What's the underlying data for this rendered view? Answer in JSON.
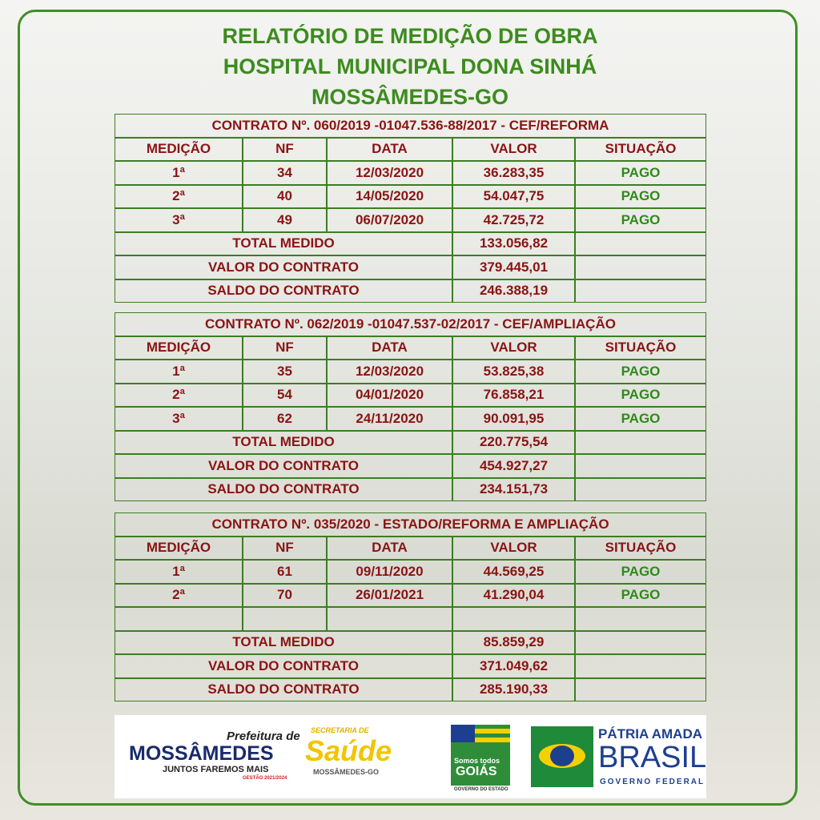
{
  "title": [
    "RELATÓRIO DE MEDIÇÃO DE OBRA",
    "HOSPITAL MUNICIPAL DONA SINHÁ",
    "MOSSÂMEDES-GO"
  ],
  "contracts": [
    {
      "header": "CONTRATO Nº. 060/2019 -01047.536-88/2017 - CEF/REFORMA",
      "columns": [
        "MEDIÇÃO",
        "NF",
        "DATA",
        "VALOR",
        "SITUAÇÃO"
      ],
      "rows": [
        [
          "1ª",
          "34",
          "12/03/2020",
          "36.283,35",
          "PAGO"
        ],
        [
          "2ª",
          "40",
          "14/05/2020",
          "54.047,75",
          "PAGO"
        ],
        [
          "3ª",
          "49",
          "06/07/2020",
          "42.725,72",
          "PAGO"
        ]
      ],
      "totals": [
        {
          "label": "TOTAL MEDIDO",
          "value": "133.056,82"
        },
        {
          "label": "VALOR DO CONTRATO",
          "value": "379.445,01"
        },
        {
          "label": "SALDO DO CONTRATO",
          "value": "246.388,19"
        }
      ]
    },
    {
      "header": "CONTRATO Nº. 062/2019 -01047.537-02/2017 - CEF/AMPLIAÇÃO",
      "columns": [
        "MEDIÇÃO",
        "NF",
        "DATA",
        "VALOR",
        "SITUAÇÃO"
      ],
      "rows": [
        [
          "1ª",
          "35",
          "12/03/2020",
          "53.825,38",
          "PAGO"
        ],
        [
          "2ª",
          "54",
          "04/01/2020",
          "76.858,21",
          "PAGO"
        ],
        [
          "3ª",
          "62",
          "24/11/2020",
          "90.091,95",
          "PAGO"
        ]
      ],
      "totals": [
        {
          "label": "TOTAL MEDIDO",
          "value": "220.775,54"
        },
        {
          "label": "VALOR DO CONTRATO",
          "value": "454.927,27"
        },
        {
          "label": "SALDO DO CONTRATO",
          "value": "234.151,73"
        }
      ]
    },
    {
      "header": "CONTRATO Nº. 035/2020 - ESTADO/REFORMA E AMPLIAÇÃO",
      "columns": [
        "MEDIÇÃO",
        "NF",
        "DATA",
        "VALOR",
        "SITUAÇÃO"
      ],
      "rows": [
        [
          "1ª",
          "61",
          "09/11/2020",
          "44.569,25",
          "PAGO"
        ],
        [
          "2ª",
          "70",
          "26/01/2021",
          "41.290,04",
          "PAGO"
        ]
      ],
      "totals": [
        {
          "label": "TOTAL MEDIDO",
          "value": "85.859,29"
        },
        {
          "label": "VALOR DO CONTRATO",
          "value": "371.049,62"
        },
        {
          "label": "SALDO DO CONTRATO",
          "value": "285.190,33"
        }
      ]
    }
  ],
  "logos": {
    "prefeitura": {
      "top": "Prefeitura de",
      "name": "MOSSÂMEDES",
      "slogan": "JUNTOS FAREMOS MAIS",
      "term": "GESTÃO 2021/2024"
    },
    "saude": {
      "top": "SECRETARIA DE",
      "name": "Saúde",
      "city": "MOSSÂMEDES-GO"
    },
    "goias": {
      "slogan": "Somos todos",
      "name": "GOIÁS",
      "sub": "GOVERNO DO ESTADO"
    },
    "brasil": {
      "top": "PÁTRIA AMADA",
      "name": "BRASIL",
      "sub": "GOVERNO FEDERAL"
    }
  }
}
